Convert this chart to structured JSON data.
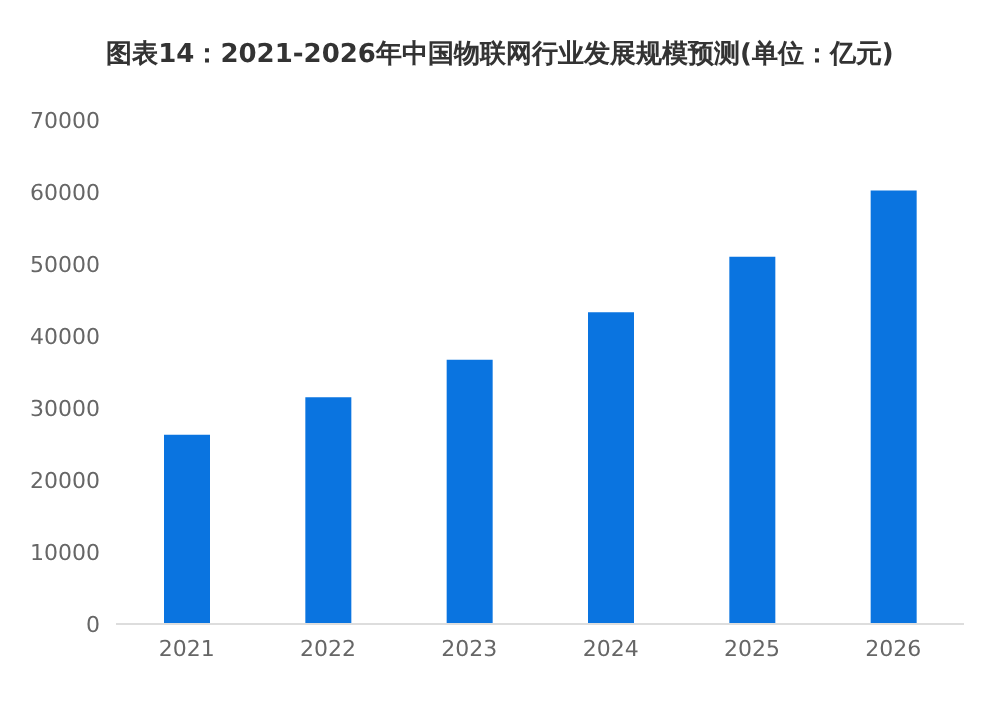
{
  "chart_data": {
    "type": "bar",
    "title": "图表14：2021-2026年中国物联网行业发展规模预测(单位：亿元)",
    "categories": [
      "2021",
      "2022",
      "2023",
      "2024",
      "2025",
      "2026"
    ],
    "values": [
      26300,
      31500,
      36700,
      43300,
      51000,
      60200
    ],
    "color": "#0a74e0",
    "ylim": [
      0,
      70000
    ],
    "yticks": [
      0,
      10000,
      20000,
      30000,
      40000,
      50000,
      60000,
      70000
    ],
    "grid": false
  }
}
